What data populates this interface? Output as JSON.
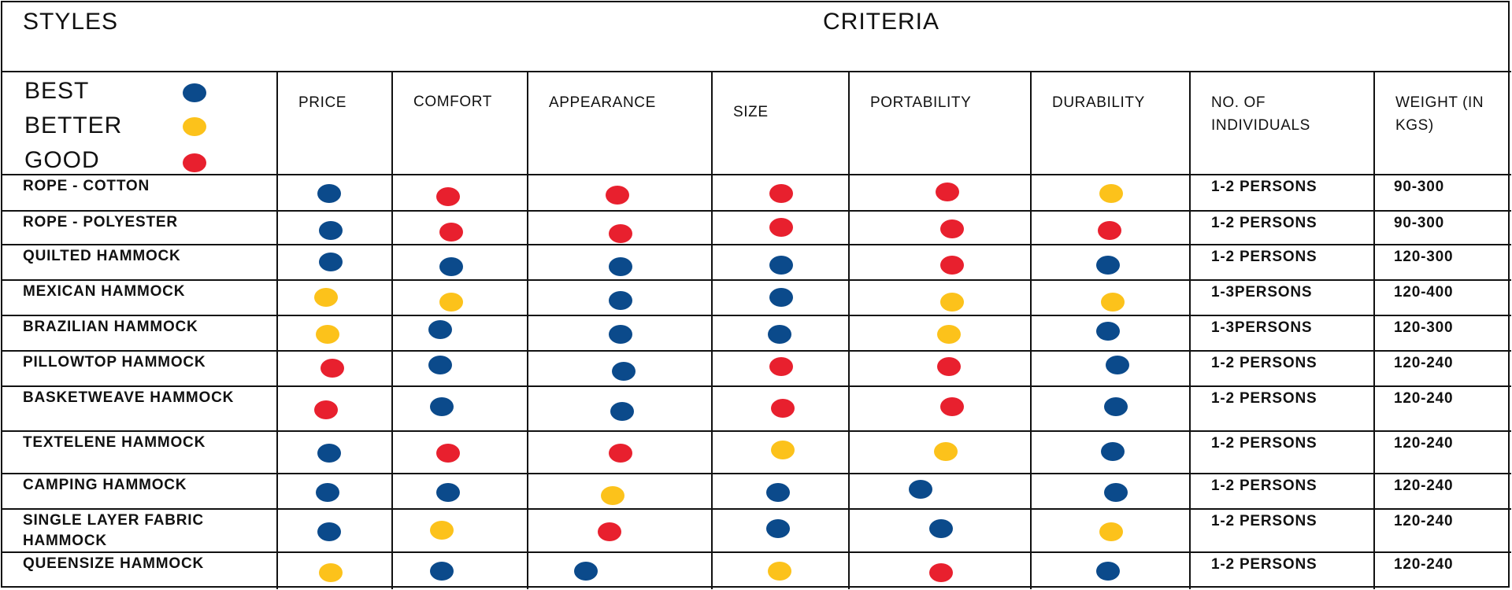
{
  "title_styles": "STYLES",
  "title_criteria": "CRITERIA",
  "legend": [
    {
      "label": "BEST",
      "color": "#0b4a8b"
    },
    {
      "label": "BETTER",
      "color": "#fcc21b"
    },
    {
      "label": "GOOD",
      "color": "#e8202e"
    }
  ],
  "columns": [
    "PRICE",
    "COMFORT",
    "APPEARANCE",
    "SIZE",
    "PORTABILITY",
    "DURABILITY",
    "NO. OF INDIVIDUALS",
    "WEIGHT (IN KGS)"
  ],
  "rating_colors": {
    "best": "#0b4a8b",
    "better": "#fcc21b",
    "good": "#e8202e"
  },
  "rows": [
    {
      "style": "ROPE - COTTON",
      "ratings": [
        "best",
        "good",
        "good",
        "good",
        "good",
        "better"
      ],
      "individuals": "1-2 PERSONS",
      "weight": "90-300"
    },
    {
      "style": "ROPE - POLYESTER",
      "ratings": [
        "best",
        "good",
        "good",
        "good",
        "good",
        "good"
      ],
      "individuals": "1-2 PERSONS",
      "weight": "90-300"
    },
    {
      "style": "QUILTED HAMMOCK",
      "ratings": [
        "best",
        "best",
        "best",
        "best",
        "good",
        "best"
      ],
      "individuals": "1-2 PERSONS",
      "weight": "120-300"
    },
    {
      "style": "MEXICAN HAMMOCK",
      "ratings": [
        "better",
        "better",
        "best",
        "best",
        "better",
        "better"
      ],
      "individuals": "1-3PERSONS",
      "weight": "120-400"
    },
    {
      "style": "BRAZILIAN HAMMOCK",
      "ratings": [
        "better",
        "best",
        "best",
        "best",
        "better",
        "best"
      ],
      "individuals": "1-3PERSONS",
      "weight": "120-300"
    },
    {
      "style": "PILLOWTOP HAMMOCK",
      "ratings": [
        "good",
        "best",
        "best",
        "good",
        "good",
        "best"
      ],
      "individuals": "1-2 PERSONS",
      "weight": "120-240"
    },
    {
      "style": "BASKETWEAVE HAMMOCK",
      "ratings": [
        "good",
        "best",
        "best",
        "good",
        "good",
        "best"
      ],
      "individuals": "1-2 PERSONS",
      "weight": "120-240"
    },
    {
      "style": "TEXTELENE HAMMOCK",
      "ratings": [
        "best",
        "good",
        "good",
        "better",
        "better",
        "best"
      ],
      "individuals": "1-2 PERSONS",
      "weight": "120-240"
    },
    {
      "style": "CAMPING HAMMOCK",
      "ratings": [
        "best",
        "best",
        "better",
        "best",
        "best",
        "best"
      ],
      "individuals": "1-2 PERSONS",
      "weight": "120-240"
    },
    {
      "style": "SINGLE LAYER FABRIC HAMMOCK",
      "ratings": [
        "best",
        "better",
        "good",
        "best",
        "best",
        "better"
      ],
      "individuals": "1-2 PERSONS",
      "weight": "120-240"
    },
    {
      "style": "QUEENSIZE HAMMOCK",
      "ratings": [
        "better",
        "best",
        "best",
        "better",
        "good",
        "best"
      ],
      "individuals": "1-2 PERSONS",
      "weight": "120-240"
    }
  ]
}
